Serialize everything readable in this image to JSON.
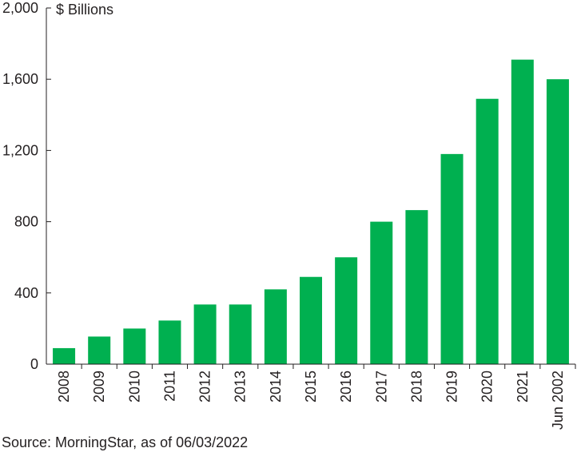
{
  "chart_data": {
    "type": "bar",
    "unit_label": "$ Billions",
    "categories": [
      "2008",
      "2009",
      "2010",
      "2011",
      "2012",
      "2013",
      "2014",
      "2015",
      "2016",
      "2017",
      "2018",
      "2019",
      "2020",
      "2021",
      "Jun 2002"
    ],
    "values": [
      90,
      155,
      200,
      245,
      335,
      335,
      420,
      490,
      600,
      800,
      865,
      1180,
      1490,
      1710,
      1600
    ],
    "ylim": [
      0,
      2000
    ],
    "yticks": [
      "0",
      "400",
      "800",
      "1,200",
      "1,600",
      "2,000"
    ],
    "ytick_values": [
      0,
      400,
      800,
      1200,
      1600,
      2000
    ],
    "bar_color": "#00b050",
    "grid": false,
    "legend": "none"
  },
  "source": "Source: MorningStar, as of 06/03/2022"
}
